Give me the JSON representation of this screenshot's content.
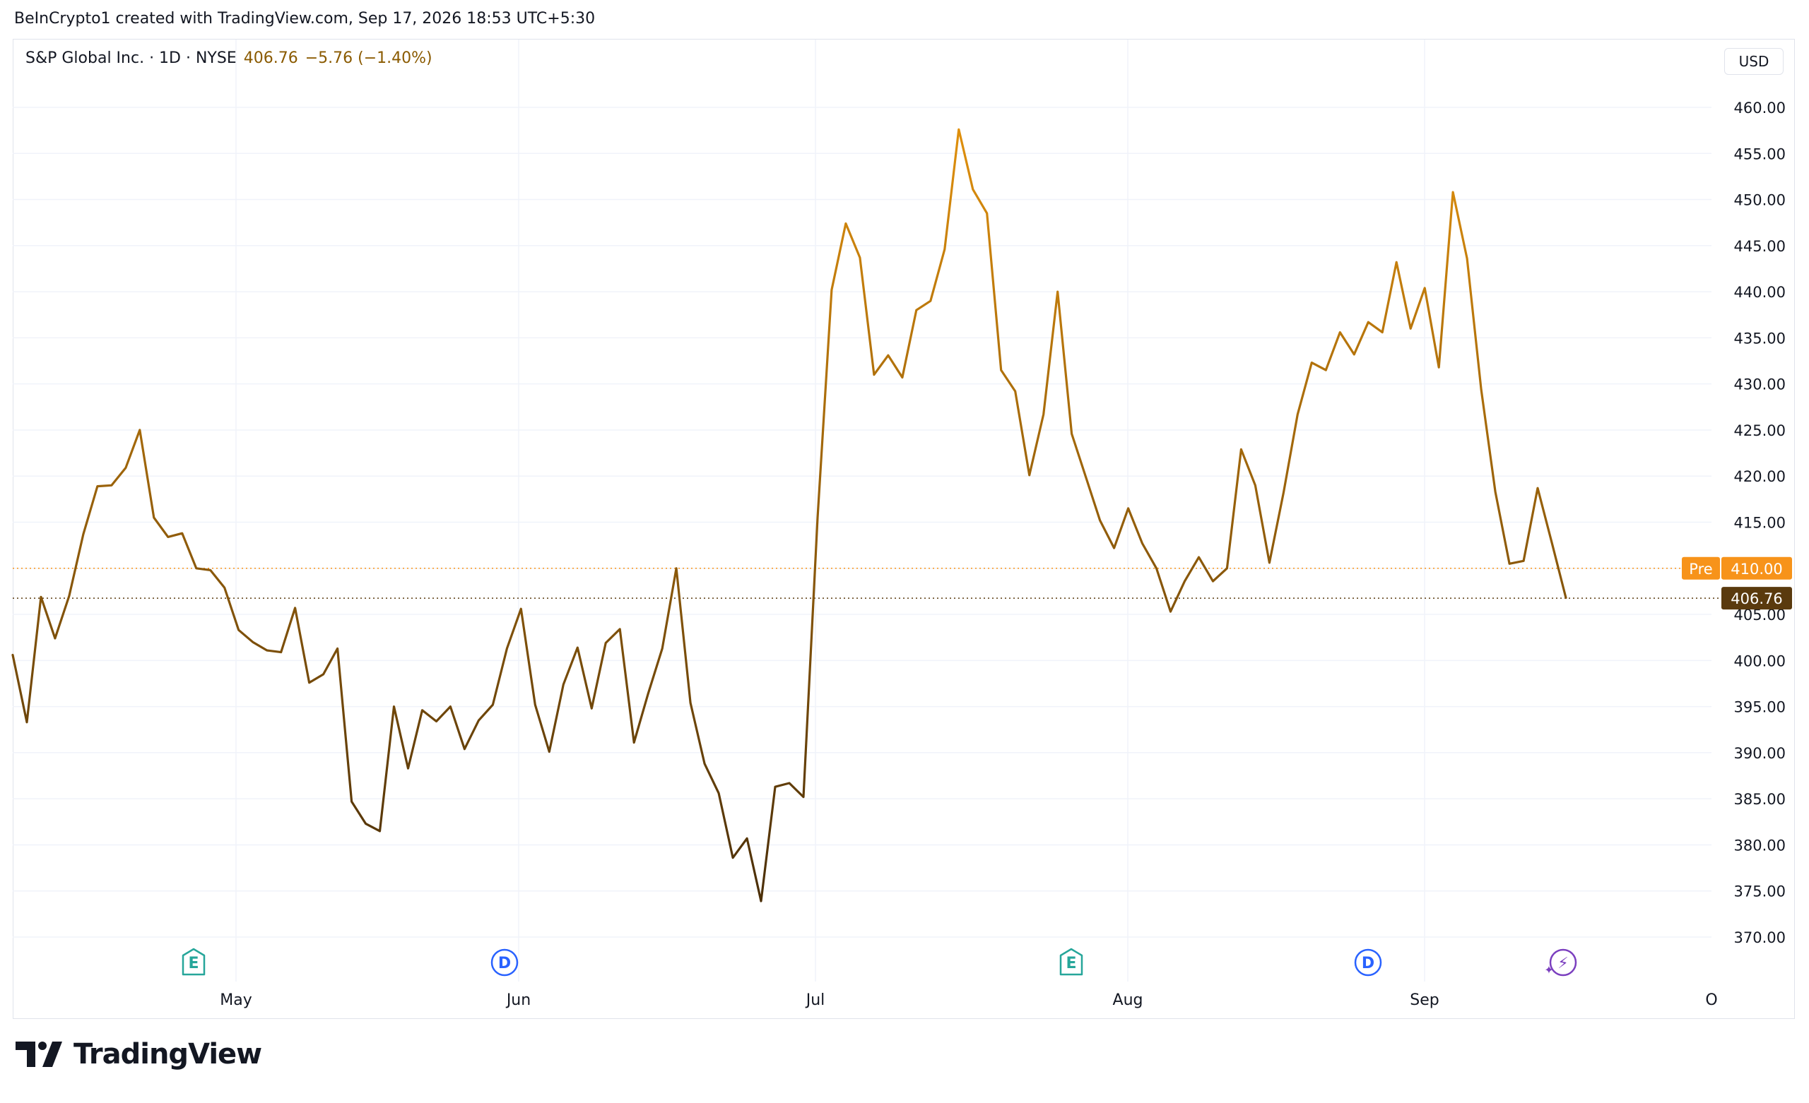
{
  "header": {
    "attribution": "BeInCrypto1 created with TradingView.com, Sep 17, 2026 18:53 UTC+5:30"
  },
  "legend": {
    "symbol": "S&P Global Inc. · 1D · NYSE",
    "price": "406.76",
    "change": "−5.76 (−1.40%)"
  },
  "currency_button": "USD",
  "price_badges": {
    "pre_label": "Pre",
    "pre_value": "410.00",
    "last_value": "406.76"
  },
  "logo": {
    "wordmark": "TradingView"
  },
  "colors": {
    "line_dark": "#4a2e08",
    "line_light": "#e0900c",
    "pre_badge": "#f7931a",
    "last_badge": "#5a3a0e",
    "earnings_icon": "#26a69a",
    "dividend_icon": "#2962ff",
    "split_icon": "#7b3fbf"
  },
  "chart_data": {
    "type": "line",
    "title": "S&P Global Inc. · 1D · NYSE",
    "xlabel": "",
    "ylabel": "",
    "ylim": [
      370,
      460
    ],
    "yticks": [
      "460.00",
      "455.00",
      "450.00",
      "445.00",
      "440.00",
      "435.00",
      "430.00",
      "425.00",
      "420.00",
      "415.00",
      "410.00",
      "405.00",
      "400.00",
      "395.00",
      "390.00",
      "385.00",
      "380.00",
      "375.00",
      "370.00"
    ],
    "month_labels": [
      "May",
      "Jun",
      "Jul",
      "Aug",
      "Sep",
      "O"
    ],
    "grid": true,
    "legend": "top-left",
    "pre_market_price": 410.0,
    "last_price": 406.76,
    "series": [
      {
        "values": [
          400.6,
          393.3,
          406.9,
          402.4,
          407.0,
          413.7,
          418.9,
          419.0,
          420.9,
          425.0,
          415.5,
          413.4,
          413.8,
          410.0,
          409.8,
          407.9,
          403.3,
          402.0,
          401.1,
          400.9,
          405.7,
          397.6,
          398.5,
          401.3,
          384.7,
          382.3,
          381.5,
          395.0,
          388.3,
          394.6,
          393.4,
          395.0,
          390.4,
          393.5,
          395.2,
          401.3,
          405.6,
          395.2,
          390.1,
          397.4,
          401.4,
          394.8,
          401.9,
          403.4,
          391.1,
          396.4,
          401.3,
          410.0,
          395.4,
          388.8,
          385.6,
          378.6,
          380.7,
          373.9,
          386.3,
          386.7,
          385.2,
          415.5,
          440.2,
          447.4,
          443.7,
          431.0,
          433.1,
          430.7,
          438.0,
          439.0,
          444.6,
          457.6,
          451.1,
          448.5,
          431.5,
          429.2,
          420.1,
          426.7,
          440.0,
          424.6,
          419.9,
          415.2,
          412.2,
          416.5,
          412.7,
          410.0,
          405.3,
          408.6,
          411.2,
          408.6,
          410.0,
          422.9,
          419.0,
          410.6,
          418.2,
          426.7,
          432.3,
          431.5,
          435.6,
          433.2,
          436.7,
          435.6,
          443.2,
          436.0,
          440.4,
          431.8,
          450.8,
          443.6,
          429.4,
          418.3,
          410.5,
          410.8,
          418.7,
          412.8,
          406.8
        ]
      }
    ],
    "event_markers": [
      {
        "type": "earnings",
        "glyph": "E"
      },
      {
        "type": "dividend",
        "glyph": "D"
      },
      {
        "type": "earnings",
        "glyph": "E"
      },
      {
        "type": "dividend",
        "glyph": "D"
      },
      {
        "type": "split",
        "glyph": "⚡"
      }
    ]
  }
}
